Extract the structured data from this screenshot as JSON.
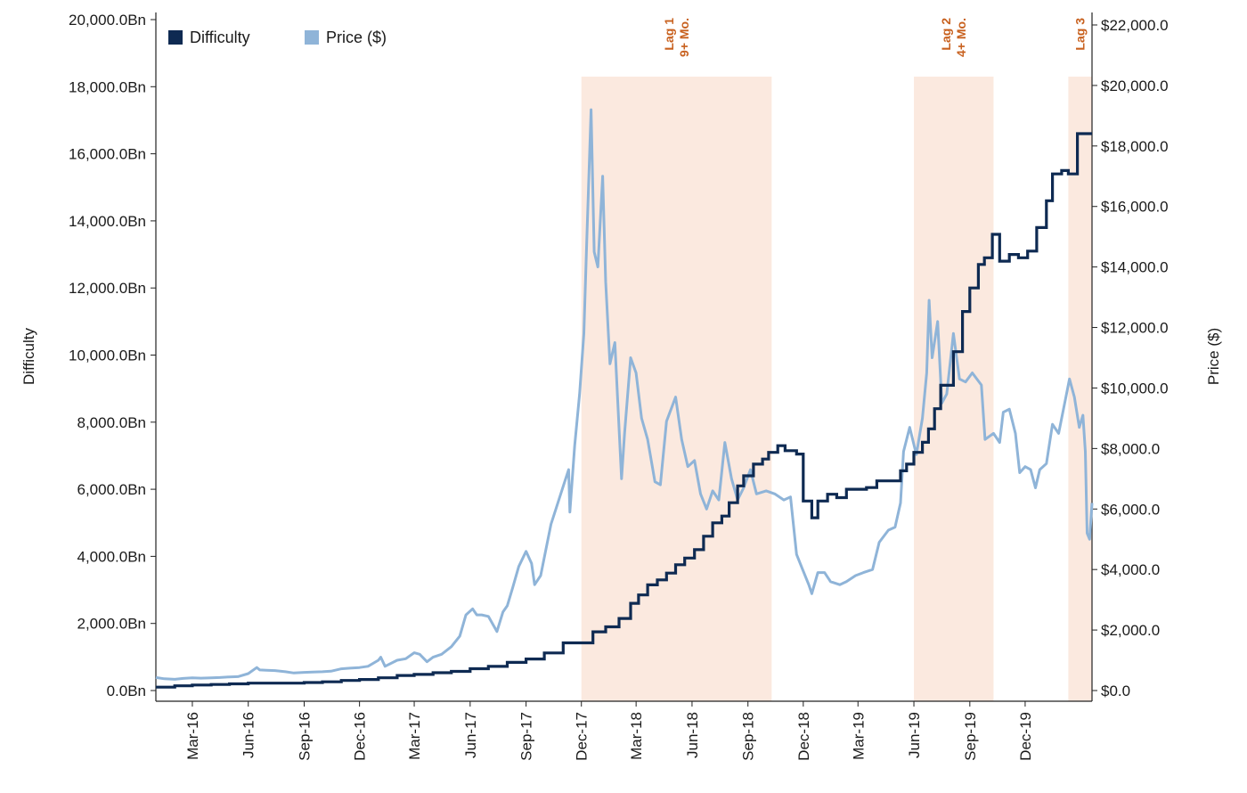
{
  "chart_data": {
    "type": "line",
    "title": "",
    "colors": {
      "difficulty": "#0e2a52",
      "price": "#8fb4d8",
      "lag_shade": "#fbe9df",
      "lag_text": "#c8611f"
    },
    "x_range": [
      "2016-01-01",
      "2020-03-20"
    ],
    "x_tick_labels": [
      "Mar-16",
      "Jun-16",
      "Sep-16",
      "Dec-16",
      "Mar-17",
      "Jun-17",
      "Sep-17",
      "Dec-17",
      "Mar-18",
      "Jun-18",
      "Sep-18",
      "Dec-18",
      "Mar-19",
      "Jun-19",
      "Sep-19",
      "Dec-19"
    ],
    "x_tick_dates": [
      "2016-03-01",
      "2016-06-01",
      "2016-09-01",
      "2016-12-01",
      "2017-03-01",
      "2017-06-01",
      "2017-09-01",
      "2017-12-01",
      "2018-03-01",
      "2018-06-01",
      "2018-09-01",
      "2018-12-01",
      "2019-03-01",
      "2019-06-01",
      "2019-09-01",
      "2019-12-01"
    ],
    "y_left": {
      "label": "Difficulty",
      "range": [
        0,
        20000
      ],
      "tick_values": [
        0,
        2000,
        4000,
        6000,
        8000,
        10000,
        12000,
        14000,
        16000,
        18000,
        20000
      ],
      "tick_labels": [
        "0.0Bn",
        "2,000.0Bn",
        "4,000.0Bn",
        "6,000.0Bn",
        "8,000.0Bn",
        "10,000.0Bn",
        "12,000.0Bn",
        "14,000.0Bn",
        "16,000.0Bn",
        "18,000.0Bn",
        "20,000.0Bn"
      ]
    },
    "y_right": {
      "label": "Price ($)",
      "range": [
        0,
        22000
      ],
      "tick_values": [
        0,
        2000,
        4000,
        6000,
        8000,
        10000,
        12000,
        14000,
        16000,
        18000,
        20000,
        22000
      ],
      "tick_labels": [
        "$0.0",
        "$2,000.0",
        "$4,000.0",
        "$6,000.0",
        "$8,000.0",
        "$10,000.0",
        "$12,000.0",
        "$14,000.0",
        "$16,000.0",
        "$18,000.0",
        "$20,000.0",
        "$22,000.0"
      ]
    },
    "legend": {
      "position": "top-left",
      "items": [
        {
          "label": "Difficulty",
          "series": "difficulty"
        },
        {
          "label": "Price ($)",
          "series": "price"
        }
      ]
    },
    "lag_periods": [
      {
        "lines": [
          "Lag 1",
          "9+ Mo."
        ],
        "start": "2017-12-01",
        "end": "2018-10-10"
      },
      {
        "lines": [
          "Lag 2",
          "4+ Mo."
        ],
        "start": "2019-06-01",
        "end": "2019-10-10"
      },
      {
        "lines": [
          "Lag 3"
        ],
        "start": "2020-02-10",
        "end": "2020-03-20"
      }
    ],
    "series": [
      {
        "name": "Difficulty",
        "axis": "left",
        "style": "step",
        "points": [
          [
            "2016-01-01",
            100
          ],
          [
            "2016-02-01",
            140
          ],
          [
            "2016-03-01",
            165
          ],
          [
            "2016-04-01",
            180
          ],
          [
            "2016-05-01",
            200
          ],
          [
            "2016-06-01",
            220
          ],
          [
            "2016-07-01",
            220
          ],
          [
            "2016-08-01",
            220
          ],
          [
            "2016-09-01",
            240
          ],
          [
            "2016-10-01",
            260
          ],
          [
            "2016-11-01",
            300
          ],
          [
            "2016-12-01",
            330
          ],
          [
            "2017-01-01",
            380
          ],
          [
            "2017-02-01",
            450
          ],
          [
            "2017-03-01",
            480
          ],
          [
            "2017-04-01",
            530
          ],
          [
            "2017-05-01",
            570
          ],
          [
            "2017-06-01",
            650
          ],
          [
            "2017-07-01",
            720
          ],
          [
            "2017-08-01",
            840
          ],
          [
            "2017-09-01",
            940
          ],
          [
            "2017-10-01",
            1120
          ],
          [
            "2017-11-01",
            1420
          ],
          [
            "2017-12-01",
            1420
          ],
          [
            "2017-12-20",
            1750
          ],
          [
            "2018-01-10",
            1900
          ],
          [
            "2018-02-01",
            2150
          ],
          [
            "2018-02-20",
            2600
          ],
          [
            "2018-03-05",
            2850
          ],
          [
            "2018-03-20",
            3150
          ],
          [
            "2018-04-05",
            3300
          ],
          [
            "2018-04-20",
            3500
          ],
          [
            "2018-05-05",
            3750
          ],
          [
            "2018-05-20",
            3950
          ],
          [
            "2018-06-05",
            4200
          ],
          [
            "2018-06-20",
            4600
          ],
          [
            "2018-07-05",
            5000
          ],
          [
            "2018-07-20",
            5200
          ],
          [
            "2018-08-01",
            5600
          ],
          [
            "2018-08-15",
            6100
          ],
          [
            "2018-08-25",
            6400
          ],
          [
            "2018-09-10",
            6750
          ],
          [
            "2018-09-25",
            6900
          ],
          [
            "2018-10-05",
            7100
          ],
          [
            "2018-10-20",
            7300
          ],
          [
            "2018-11-01",
            7150
          ],
          [
            "2018-11-20",
            7050
          ],
          [
            "2018-12-01",
            5650
          ],
          [
            "2018-12-15",
            5150
          ],
          [
            "2018-12-25",
            5650
          ],
          [
            "2019-01-10",
            5850
          ],
          [
            "2019-01-25",
            5750
          ],
          [
            "2019-02-10",
            6000
          ],
          [
            "2019-03-01",
            6000
          ],
          [
            "2019-03-15",
            6050
          ],
          [
            "2019-04-01",
            6250
          ],
          [
            "2019-04-25",
            6250
          ],
          [
            "2019-05-10",
            6550
          ],
          [
            "2019-05-20",
            6750
          ],
          [
            "2019-06-01",
            7100
          ],
          [
            "2019-06-15",
            7400
          ],
          [
            "2019-06-25",
            7800
          ],
          [
            "2019-07-05",
            8400
          ],
          [
            "2019-07-15",
            9100
          ],
          [
            "2019-07-25",
            9100
          ],
          [
            "2019-08-05",
            10100
          ],
          [
            "2019-08-20",
            11300
          ],
          [
            "2019-09-01",
            12000
          ],
          [
            "2019-09-15",
            12700
          ],
          [
            "2019-09-25",
            12900
          ],
          [
            "2019-10-08",
            13600
          ],
          [
            "2019-10-20",
            12800
          ],
          [
            "2019-11-05",
            13000
          ],
          [
            "2019-11-20",
            12900
          ],
          [
            "2019-12-05",
            13100
          ],
          [
            "2019-12-20",
            13800
          ],
          [
            "2020-01-05",
            14600
          ],
          [
            "2020-01-15",
            15400
          ],
          [
            "2020-01-30",
            15500
          ],
          [
            "2020-02-10",
            15400
          ],
          [
            "2020-02-25",
            16600
          ],
          [
            "2020-03-20",
            16600
          ]
        ]
      },
      {
        "name": "Price ($)",
        "axis": "right",
        "style": "line",
        "points": [
          [
            "2016-01-01",
            430
          ],
          [
            "2016-01-15",
            390
          ],
          [
            "2016-02-01",
            370
          ],
          [
            "2016-02-15",
            400
          ],
          [
            "2016-03-01",
            420
          ],
          [
            "2016-03-15",
            410
          ],
          [
            "2016-04-01",
            420
          ],
          [
            "2016-04-15",
            430
          ],
          [
            "2016-05-01",
            450
          ],
          [
            "2016-05-15",
            460
          ],
          [
            "2016-06-01",
            560
          ],
          [
            "2016-06-15",
            760
          ],
          [
            "2016-06-20",
            680
          ],
          [
            "2016-07-01",
            670
          ],
          [
            "2016-07-15",
            660
          ],
          [
            "2016-08-01",
            620
          ],
          [
            "2016-08-15",
            580
          ],
          [
            "2016-09-01",
            600
          ],
          [
            "2016-09-15",
            610
          ],
          [
            "2016-10-01",
            620
          ],
          [
            "2016-10-15",
            640
          ],
          [
            "2016-11-01",
            720
          ],
          [
            "2016-11-15",
            740
          ],
          [
            "2016-12-01",
            760
          ],
          [
            "2016-12-15",
            800
          ],
          [
            "2017-01-01",
            1000
          ],
          [
            "2017-01-05",
            1100
          ],
          [
            "2017-01-12",
            800
          ],
          [
            "2017-02-01",
            1000
          ],
          [
            "2017-02-15",
            1050
          ],
          [
            "2017-03-01",
            1250
          ],
          [
            "2017-03-10",
            1200
          ],
          [
            "2017-03-22",
            950
          ],
          [
            "2017-04-01",
            1100
          ],
          [
            "2017-04-15",
            1200
          ],
          [
            "2017-05-01",
            1450
          ],
          [
            "2017-05-15",
            1800
          ],
          [
            "2017-05-25",
            2500
          ],
          [
            "2017-06-05",
            2700
          ],
          [
            "2017-06-12",
            2500
          ],
          [
            "2017-06-20",
            2500
          ],
          [
            "2017-07-01",
            2450
          ],
          [
            "2017-07-15",
            1950
          ],
          [
            "2017-07-25",
            2600
          ],
          [
            "2017-08-01",
            2800
          ],
          [
            "2017-08-10",
            3400
          ],
          [
            "2017-08-20",
            4100
          ],
          [
            "2017-09-01",
            4600
          ],
          [
            "2017-09-10",
            4200
          ],
          [
            "2017-09-15",
            3500
          ],
          [
            "2017-09-25",
            3800
          ],
          [
            "2017-10-01",
            4400
          ],
          [
            "2017-10-12",
            5500
          ],
          [
            "2017-10-20",
            6000
          ],
          [
            "2017-11-01",
            6750
          ],
          [
            "2017-11-10",
            7300
          ],
          [
            "2017-11-12",
            5900
          ],
          [
            "2017-11-20",
            8100
          ],
          [
            "2017-11-28",
            9800
          ],
          [
            "2017-12-05",
            11800
          ],
          [
            "2017-12-10",
            15000
          ],
          [
            "2017-12-17",
            19200
          ],
          [
            "2017-12-22",
            14500
          ],
          [
            "2017-12-28",
            14000
          ],
          [
            "2018-01-05",
            17000
          ],
          [
            "2018-01-10",
            13500
          ],
          [
            "2018-01-17",
            10800
          ],
          [
            "2018-01-25",
            11500
          ],
          [
            "2018-02-05",
            7000
          ],
          [
            "2018-02-10",
            8500
          ],
          [
            "2018-02-20",
            11000
          ],
          [
            "2018-03-01",
            10500
          ],
          [
            "2018-03-10",
            9000
          ],
          [
            "2018-03-20",
            8300
          ],
          [
            "2018-04-01",
            6900
          ],
          [
            "2018-04-10",
            6800
          ],
          [
            "2018-04-20",
            8900
          ],
          [
            "2018-05-05",
            9700
          ],
          [
            "2018-05-15",
            8300
          ],
          [
            "2018-05-25",
            7400
          ],
          [
            "2018-06-05",
            7600
          ],
          [
            "2018-06-15",
            6500
          ],
          [
            "2018-06-25",
            6000
          ],
          [
            "2018-07-05",
            6600
          ],
          [
            "2018-07-15",
            6300
          ],
          [
            "2018-07-25",
            8200
          ],
          [
            "2018-08-05",
            7000
          ],
          [
            "2018-08-15",
            6300
          ],
          [
            "2018-08-25",
            6700
          ],
          [
            "2018-09-05",
            7300
          ],
          [
            "2018-09-15",
            6500
          ],
          [
            "2018-10-01",
            6600
          ],
          [
            "2018-10-15",
            6500
          ],
          [
            "2018-10-30",
            6300
          ],
          [
            "2018-11-10",
            6400
          ],
          [
            "2018-11-20",
            4500
          ],
          [
            "2018-11-30",
            4000
          ],
          [
            "2018-12-10",
            3500
          ],
          [
            "2018-12-15",
            3200
          ],
          [
            "2018-12-25",
            3900
          ],
          [
            "2019-01-05",
            3900
          ],
          [
            "2019-01-15",
            3600
          ],
          [
            "2019-01-30",
            3500
          ],
          [
            "2019-02-10",
            3600
          ],
          [
            "2019-02-25",
            3800
          ],
          [
            "2019-03-10",
            3900
          ],
          [
            "2019-03-25",
            4000
          ],
          [
            "2019-04-05",
            4900
          ],
          [
            "2019-04-20",
            5300
          ],
          [
            "2019-05-01",
            5400
          ],
          [
            "2019-05-10",
            6200
          ],
          [
            "2019-05-15",
            7900
          ],
          [
            "2019-05-25",
            8700
          ],
          [
            "2019-06-05",
            7800
          ],
          [
            "2019-06-15",
            9000
          ],
          [
            "2019-06-22",
            10500
          ],
          [
            "2019-06-26",
            12900
          ],
          [
            "2019-07-01",
            11000
          ],
          [
            "2019-07-10",
            12200
          ],
          [
            "2019-07-17",
            9500
          ],
          [
            "2019-07-25",
            9800
          ],
          [
            "2019-08-05",
            11800
          ],
          [
            "2019-08-15",
            10300
          ],
          [
            "2019-08-25",
            10200
          ],
          [
            "2019-09-05",
            10500
          ],
          [
            "2019-09-20",
            10100
          ],
          [
            "2019-09-26",
            8300
          ],
          [
            "2019-10-10",
            8500
          ],
          [
            "2019-10-20",
            8200
          ],
          [
            "2019-10-26",
            9200
          ],
          [
            "2019-11-05",
            9300
          ],
          [
            "2019-11-15",
            8500
          ],
          [
            "2019-11-22",
            7200
          ],
          [
            "2019-12-01",
            7400
          ],
          [
            "2019-12-10",
            7300
          ],
          [
            "2019-12-18",
            6700
          ],
          [
            "2019-12-25",
            7300
          ],
          [
            "2020-01-05",
            7500
          ],
          [
            "2020-01-15",
            8800
          ],
          [
            "2020-01-25",
            8500
          ],
          [
            "2020-02-05",
            9600
          ],
          [
            "2020-02-12",
            10300
          ],
          [
            "2020-02-20",
            9700
          ],
          [
            "2020-02-28",
            8700
          ],
          [
            "2020-03-05",
            9100
          ],
          [
            "2020-03-09",
            7900
          ],
          [
            "2020-03-12",
            5200
          ],
          [
            "2020-03-16",
            5000
          ],
          [
            "2020-03-20",
            6200
          ]
        ]
      }
    ]
  }
}
